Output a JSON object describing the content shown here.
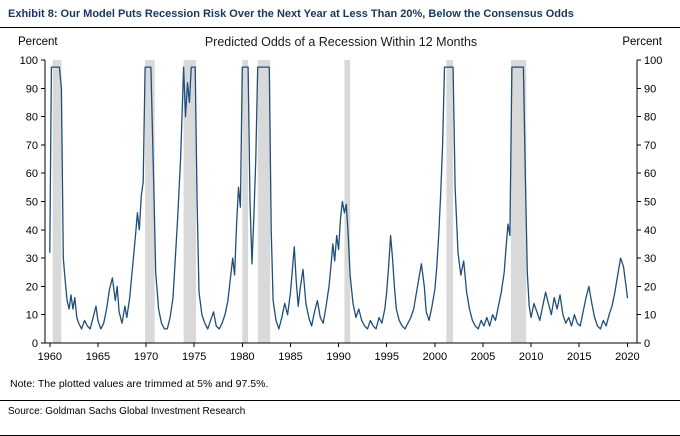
{
  "exhibit": {
    "title": "Exhibit 8: Our Model Puts Recession Risk Over the Next Year at Less Than 20%, Below the Consensus Odds",
    "note": "Note: The plotted values are trimmed at 5% and 97.5%.",
    "source": "Source: Goldman Sachs Global Investment Research"
  },
  "chart_data": {
    "type": "line",
    "title": "Predicted Odds of a Recession  Within 12 Months",
    "left_axis_label": "Percent",
    "right_axis_label": "Percent",
    "xlabel": "",
    "ylabel": "Percent",
    "ylim": [
      0,
      100
    ],
    "ytick_step": 10,
    "xlim": [
      1959.5,
      2021
    ],
    "xticks": [
      1960,
      1965,
      1970,
      1975,
      1980,
      1985,
      1990,
      1995,
      2000,
      2005,
      2010,
      2015,
      2020
    ],
    "grid": false,
    "line_color": "#1F4E79",
    "recession_band_color": "#D9D9D9",
    "trim_low": 5,
    "trim_high": 97.5,
    "recession_bands": [
      [
        1960.3,
        1961.2
      ],
      [
        1969.9,
        1970.9
      ],
      [
        1973.9,
        1975.2
      ],
      [
        1980.0,
        1980.6
      ],
      [
        1981.6,
        1982.9
      ],
      [
        1990.6,
        1991.2
      ],
      [
        2001.2,
        2001.9
      ],
      [
        2007.9,
        2009.5
      ]
    ],
    "series": [
      {
        "name": "Predicted odds of a recession within 12 months",
        "points": [
          [
            1960.0,
            32
          ],
          [
            1960.17,
            97.5
          ],
          [
            1960.5,
            97.5
          ],
          [
            1960.75,
            97.5
          ],
          [
            1961.0,
            97.5
          ],
          [
            1961.2,
            90
          ],
          [
            1961.4,
            30
          ],
          [
            1961.6,
            22
          ],
          [
            1961.8,
            15
          ],
          [
            1962.0,
            12
          ],
          [
            1962.2,
            17
          ],
          [
            1962.4,
            12
          ],
          [
            1962.6,
            16
          ],
          [
            1962.8,
            9
          ],
          [
            1963.0,
            7
          ],
          [
            1963.3,
            5
          ],
          [
            1963.6,
            8
          ],
          [
            1963.9,
            6
          ],
          [
            1964.2,
            5
          ],
          [
            1964.5,
            9
          ],
          [
            1964.8,
            13
          ],
          [
            1965.0,
            8
          ],
          [
            1965.3,
            5
          ],
          [
            1965.6,
            7
          ],
          [
            1965.9,
            12
          ],
          [
            1966.2,
            19
          ],
          [
            1966.5,
            23
          ],
          [
            1966.8,
            15
          ],
          [
            1967.0,
            20
          ],
          [
            1967.2,
            11
          ],
          [
            1967.5,
            7
          ],
          [
            1967.8,
            13
          ],
          [
            1968.0,
            9
          ],
          [
            1968.3,
            16
          ],
          [
            1968.6,
            27
          ],
          [
            1968.9,
            38
          ],
          [
            1969.1,
            46
          ],
          [
            1969.3,
            40
          ],
          [
            1969.5,
            52
          ],
          [
            1969.7,
            57
          ],
          [
            1969.9,
            97.5
          ],
          [
            1970.2,
            97.5
          ],
          [
            1970.5,
            97.5
          ],
          [
            1970.8,
            55
          ],
          [
            1971.0,
            25
          ],
          [
            1971.3,
            12
          ],
          [
            1971.6,
            7
          ],
          [
            1971.9,
            5
          ],
          [
            1972.2,
            5
          ],
          [
            1972.5,
            9
          ],
          [
            1972.8,
            16
          ],
          [
            1973.0,
            28
          ],
          [
            1973.3,
            45
          ],
          [
            1973.6,
            66
          ],
          [
            1973.9,
            97.5
          ],
          [
            1974.1,
            80
          ],
          [
            1974.3,
            92
          ],
          [
            1974.5,
            85
          ],
          [
            1974.7,
            97.5
          ],
          [
            1974.9,
            97.5
          ],
          [
            1975.1,
            97.5
          ],
          [
            1975.3,
            50
          ],
          [
            1975.5,
            18
          ],
          [
            1975.8,
            10
          ],
          [
            1976.1,
            7
          ],
          [
            1976.4,
            5
          ],
          [
            1976.7,
            8
          ],
          [
            1977.0,
            11
          ],
          [
            1977.3,
            6
          ],
          [
            1977.6,
            5
          ],
          [
            1977.9,
            7
          ],
          [
            1978.2,
            10
          ],
          [
            1978.5,
            15
          ],
          [
            1978.8,
            24
          ],
          [
            1979.0,
            30
          ],
          [
            1979.2,
            24
          ],
          [
            1979.4,
            42
          ],
          [
            1979.6,
            55
          ],
          [
            1979.8,
            48
          ],
          [
            1980.0,
            97.5
          ],
          [
            1980.3,
            97.5
          ],
          [
            1980.6,
            97.5
          ],
          [
            1980.8,
            50
          ],
          [
            1981.0,
            28
          ],
          [
            1981.2,
            45
          ],
          [
            1981.4,
            65
          ],
          [
            1981.6,
            97.5
          ],
          [
            1981.9,
            97.5
          ],
          [
            1982.2,
            97.5
          ],
          [
            1982.5,
            97.5
          ],
          [
            1982.8,
            97.5
          ],
          [
            1983.0,
            40
          ],
          [
            1983.2,
            15
          ],
          [
            1983.5,
            8
          ],
          [
            1983.8,
            5
          ],
          [
            1984.1,
            9
          ],
          [
            1984.4,
            14
          ],
          [
            1984.7,
            10
          ],
          [
            1985.0,
            18
          ],
          [
            1985.2,
            26
          ],
          [
            1985.4,
            34
          ],
          [
            1985.6,
            22
          ],
          [
            1985.8,
            13
          ],
          [
            1986.0,
            19
          ],
          [
            1986.3,
            26
          ],
          [
            1986.6,
            14
          ],
          [
            1986.9,
            9
          ],
          [
            1987.2,
            6
          ],
          [
            1987.5,
            11
          ],
          [
            1987.8,
            15
          ],
          [
            1988.1,
            9
          ],
          [
            1988.4,
            7
          ],
          [
            1988.7,
            13
          ],
          [
            1989.0,
            20
          ],
          [
            1989.2,
            27
          ],
          [
            1989.4,
            35
          ],
          [
            1989.6,
            29
          ],
          [
            1989.8,
            38
          ],
          [
            1990.0,
            33
          ],
          [
            1990.2,
            44
          ],
          [
            1990.4,
            50
          ],
          [
            1990.6,
            46
          ],
          [
            1990.8,
            49
          ],
          [
            1991.0,
            38
          ],
          [
            1991.2,
            24
          ],
          [
            1991.5,
            14
          ],
          [
            1991.8,
            9
          ],
          [
            1992.1,
            12
          ],
          [
            1992.4,
            8
          ],
          [
            1992.7,
            6
          ],
          [
            1993.0,
            5
          ],
          [
            1993.3,
            8
          ],
          [
            1993.6,
            6
          ],
          [
            1993.9,
            5
          ],
          [
            1994.2,
            9
          ],
          [
            1994.5,
            7
          ],
          [
            1994.8,
            12
          ],
          [
            1995.0,
            18
          ],
          [
            1995.2,
            27
          ],
          [
            1995.4,
            38
          ],
          [
            1995.6,
            30
          ],
          [
            1995.8,
            20
          ],
          [
            1996.0,
            12
          ],
          [
            1996.3,
            8
          ],
          [
            1996.6,
            6
          ],
          [
            1996.9,
            5
          ],
          [
            1997.2,
            7
          ],
          [
            1997.5,
            9
          ],
          [
            1997.8,
            12
          ],
          [
            1998.0,
            16
          ],
          [
            1998.3,
            22
          ],
          [
            1998.6,
            28
          ],
          [
            1998.9,
            20
          ],
          [
            1999.1,
            11
          ],
          [
            1999.4,
            8
          ],
          [
            1999.7,
            13
          ],
          [
            2000.0,
            19
          ],
          [
            2000.2,
            27
          ],
          [
            2000.4,
            38
          ],
          [
            2000.6,
            52
          ],
          [
            2000.8,
            70
          ],
          [
            2001.0,
            97.5
          ],
          [
            2001.3,
            97.5
          ],
          [
            2001.6,
            97.5
          ],
          [
            2001.9,
            97.5
          ],
          [
            2002.1,
            55
          ],
          [
            2002.4,
            32
          ],
          [
            2002.7,
            24
          ],
          [
            2003.0,
            29
          ],
          [
            2003.3,
            18
          ],
          [
            2003.6,
            12
          ],
          [
            2003.9,
            8
          ],
          [
            2004.2,
            6
          ],
          [
            2004.5,
            5
          ],
          [
            2004.8,
            8
          ],
          [
            2005.1,
            6
          ],
          [
            2005.4,
            9
          ],
          [
            2005.7,
            6
          ],
          [
            2006.0,
            10
          ],
          [
            2006.3,
            8
          ],
          [
            2006.6,
            13
          ],
          [
            2006.9,
            18
          ],
          [
            2007.2,
            25
          ],
          [
            2007.4,
            34
          ],
          [
            2007.6,
            42
          ],
          [
            2007.8,
            38
          ],
          [
            2008.0,
            97.5
          ],
          [
            2008.3,
            97.5
          ],
          [
            2008.6,
            97.5
          ],
          [
            2008.9,
            97.5
          ],
          [
            2009.2,
            97.5
          ],
          [
            2009.4,
            60
          ],
          [
            2009.6,
            25
          ],
          [
            2009.8,
            13
          ],
          [
            2010.0,
            9
          ],
          [
            2010.3,
            14
          ],
          [
            2010.6,
            11
          ],
          [
            2010.9,
            8
          ],
          [
            2011.2,
            13
          ],
          [
            2011.5,
            18
          ],
          [
            2011.8,
            14
          ],
          [
            2012.1,
            10
          ],
          [
            2012.4,
            16
          ],
          [
            2012.7,
            12
          ],
          [
            2013.0,
            17
          ],
          [
            2013.3,
            10
          ],
          [
            2013.6,
            7
          ],
          [
            2013.9,
            9
          ],
          [
            2014.2,
            6
          ],
          [
            2014.5,
            10
          ],
          [
            2014.8,
            7
          ],
          [
            2015.1,
            6
          ],
          [
            2015.4,
            11
          ],
          [
            2015.7,
            16
          ],
          [
            2016.0,
            20
          ],
          [
            2016.3,
            14
          ],
          [
            2016.6,
            9
          ],
          [
            2016.9,
            6
          ],
          [
            2017.2,
            5
          ],
          [
            2017.5,
            8
          ],
          [
            2017.8,
            6
          ],
          [
            2018.1,
            10
          ],
          [
            2018.4,
            13
          ],
          [
            2018.7,
            18
          ],
          [
            2019.0,
            24
          ],
          [
            2019.3,
            30
          ],
          [
            2019.6,
            27
          ],
          [
            2019.9,
            19
          ],
          [
            2020.0,
            16
          ]
        ]
      }
    ]
  }
}
